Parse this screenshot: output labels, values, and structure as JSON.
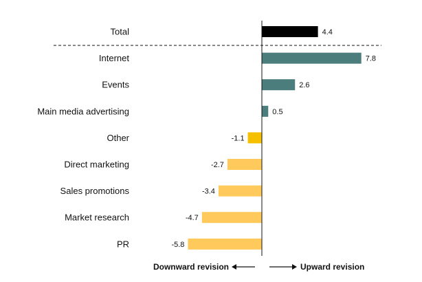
{
  "chart_data": {
    "type": "bar",
    "orientation": "horizontal",
    "categories": [
      "Total",
      "Internet",
      "Events",
      "Main media advertising",
      "Other",
      "Direct marketing",
      "Sales promotions",
      "Market research",
      "PR"
    ],
    "values": [
      4.4,
      7.8,
      2.6,
      0.5,
      -1.1,
      -2.7,
      -3.4,
      -4.7,
      -5.8
    ],
    "value_labels": [
      "4.4",
      "7.8",
      "2.6",
      "0.5",
      "-1.1",
      "-2.7",
      "-3.4",
      "-4.7",
      "-5.8"
    ],
    "xlim": [
      -5.8,
      7.8
    ],
    "grid": false,
    "separator_after": "Total",
    "colors": {
      "total": "#000000",
      "positive": "#4a7d7b",
      "negative_small": "#f5c000",
      "negative": "#ffc95c"
    },
    "direction_labels": {
      "downward": "Downward revision",
      "upward": "Upward revision"
    }
  }
}
